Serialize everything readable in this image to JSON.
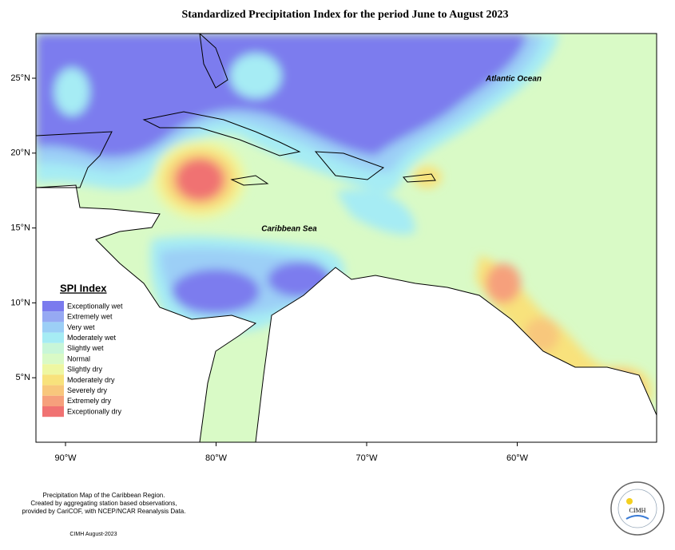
{
  "map": {
    "title": "Standardized Precipitation Index for the period June to August 2023",
    "x_ticks": [
      "90°W",
      "80°W",
      "70°W",
      "60°W"
    ],
    "y_ticks": [
      "25°N",
      "20°N",
      "15°N",
      "10°N",
      "5°N"
    ],
    "places": [
      "Atlantic Ocean",
      "Caribbean Sea"
    ],
    "legend": {
      "title": "SPI Index",
      "items": [
        {
          "label": "Exceptionally wet",
          "color": "#7b7bee"
        },
        {
          "label": "Extremely wet",
          "color": "#96a9f3"
        },
        {
          "label": "Very wet",
          "color": "#9ccff6"
        },
        {
          "label": "Moderately wet",
          "color": "#a6ecf4"
        },
        {
          "label": "Slightly wet",
          "color": "#c8f6d8"
        },
        {
          "label": "Normal",
          "color": "#d9fac6"
        },
        {
          "label": "Slightly dry",
          "color": "#eef7a2"
        },
        {
          "label": "Moderately dry",
          "color": "#f8e27c"
        },
        {
          "label": "Severely dry",
          "color": "#f8c77c"
        },
        {
          "label": "Extremely dry",
          "color": "#f6a07c"
        },
        {
          "label": "Exceptionally dry",
          "color": "#f07272"
        }
      ]
    },
    "footer": {
      "lines": [
        "Precipitation Map of the Caribbean Region.",
        "Created by aggregating station based observations,",
        "provided by CariCOF, with NCEP/NCAR Reanalysis Data."
      ],
      "credit": "CIMH August-2023"
    },
    "logo": "CIMH"
  }
}
